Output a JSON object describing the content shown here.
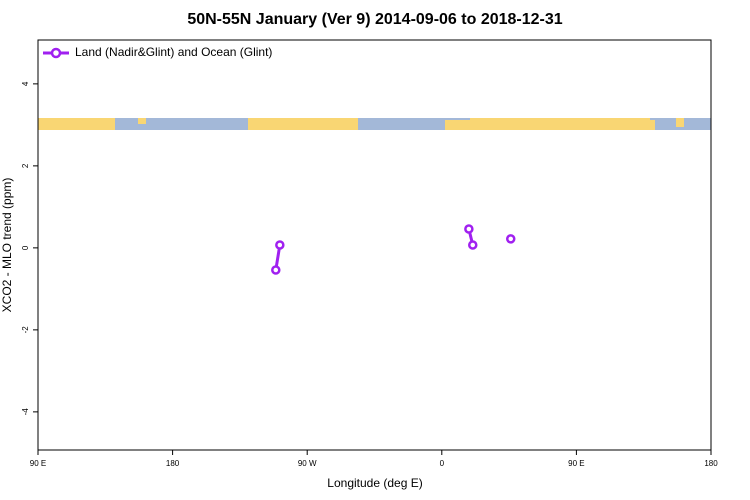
{
  "chart_data": {
    "type": "line",
    "title": "50N-55N January (Ver 9)   2014-09-06 to 2018-12-31",
    "x_label": "Longitude (deg E)",
    "y_label": "XCO2 - MLO trend (ppm)",
    "x": [
      -111,
      -108.3,
      null,
      18.1,
      20.7,
      null,
      46.1
    ],
    "series": [
      {
        "name": "Land (Nadir&Glint) and Ocean (Glint)",
        "color": "#a020f0",
        "values": [
          -0.54,
          0.07,
          null,
          0.46,
          0.07,
          null,
          0.22
        ]
      }
    ],
    "xlim": [
      -270,
      180
    ],
    "xticks": [
      {
        "value": -270,
        "label": "90 E"
      },
      {
        "value": -180,
        "label": "180"
      },
      {
        "value": -90,
        "label": "90 W"
      },
      0,
      {
        "value": 90,
        "label": "90 E"
      },
      180
    ],
    "ylim": [
      -4.93,
      5.07
    ],
    "yticks": [
      -4,
      -2,
      0,
      2,
      4
    ],
    "legend": "top-left"
  }
}
